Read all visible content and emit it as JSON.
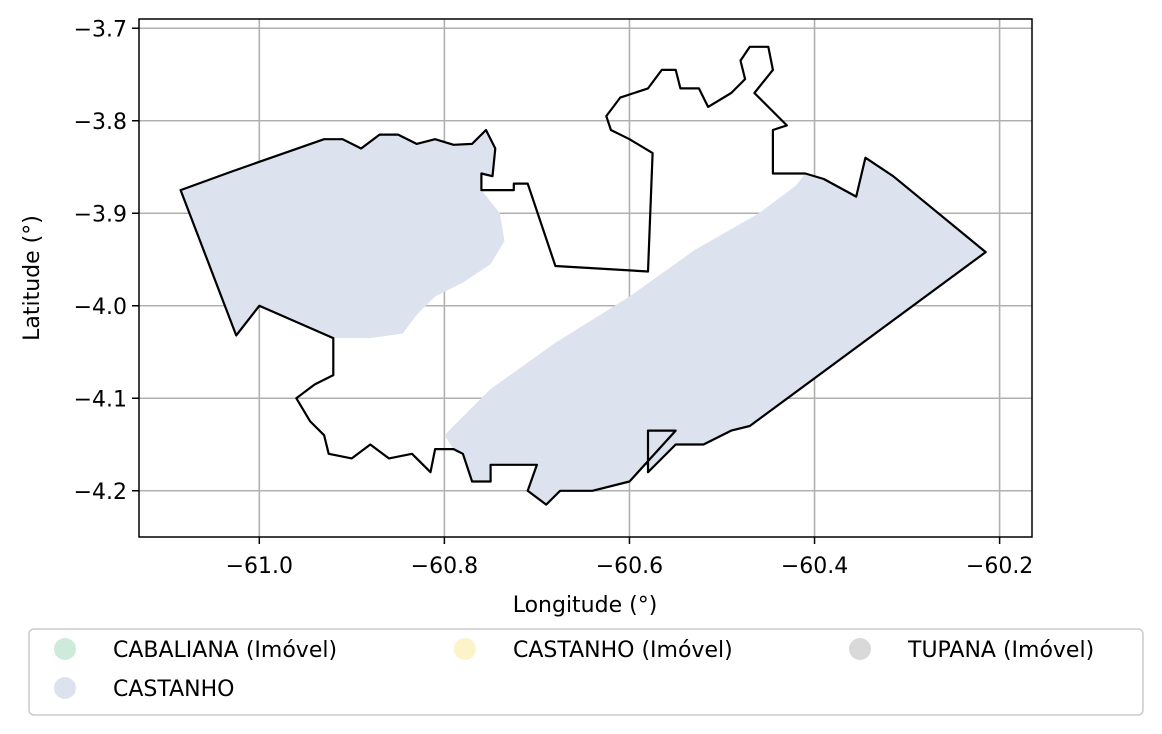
{
  "chart_data": {
    "type": "map",
    "xlabel": "Longitude (°)",
    "ylabel": "Latitude (°)",
    "xlim": [
      -61.13,
      -60.165
    ],
    "ylim": [
      -4.25,
      -3.69
    ],
    "grid": true,
    "xticks": [
      {
        "value": -61.0,
        "label": "−61.0"
      },
      {
        "value": -60.8,
        "label": "−60.8"
      },
      {
        "value": -60.6,
        "label": "−60.6"
      },
      {
        "value": -60.4,
        "label": "−60.4"
      },
      {
        "value": -60.2,
        "label": "−60.2"
      }
    ],
    "yticks": [
      {
        "value": -3.7,
        "label": "−3.7"
      },
      {
        "value": -3.8,
        "label": "−3.8"
      },
      {
        "value": -3.9,
        "label": "−3.9"
      },
      {
        "value": -4.0,
        "label": "−4.0"
      },
      {
        "value": -4.1,
        "label": "−4.1"
      },
      {
        "value": -4.2,
        "label": "−4.2"
      }
    ],
    "legend": {
      "placement": "bottom",
      "entries": [
        {
          "label": "CABALIANA (Imóvel)",
          "color": "#cdeadb"
        },
        {
          "label": "CASTANHO (Imóvel)",
          "color": "#fdf3c8"
        },
        {
          "label": "TUPANA (Imóvel)",
          "color": "#d9d9d9"
        },
        {
          "label": "CASTANHO",
          "color": "#dde2ef"
        }
      ]
    },
    "fill_color": "#dde2ef",
    "outline_color": "#000000",
    "outline": [
      [
        -61.085,
        -3.875
      ],
      [
        -61.03,
        -3.855
      ],
      [
        -60.93,
        -3.82
      ],
      [
        -60.91,
        -3.82
      ],
      [
        -60.89,
        -3.83
      ],
      [
        -60.87,
        -3.815
      ],
      [
        -60.85,
        -3.815
      ],
      [
        -60.83,
        -3.825
      ],
      [
        -60.81,
        -3.82
      ],
      [
        -60.79,
        -3.826
      ],
      [
        -60.77,
        -3.825
      ],
      [
        -60.755,
        -3.81
      ],
      [
        -60.745,
        -3.83
      ],
      [
        -60.748,
        -3.86
      ],
      [
        -60.76,
        -3.857
      ],
      [
        -60.76,
        -3.875
      ],
      [
        -60.725,
        -3.875
      ],
      [
        -60.725,
        -3.868
      ],
      [
        -60.71,
        -3.868
      ],
      [
        -60.68,
        -3.957
      ],
      [
        -60.58,
        -3.963
      ],
      [
        -60.575,
        -3.835
      ],
      [
        -60.6,
        -3.82
      ],
      [
        -60.62,
        -3.81
      ],
      [
        -60.625,
        -3.795
      ],
      [
        -60.61,
        -3.775
      ],
      [
        -60.58,
        -3.765
      ],
      [
        -60.565,
        -3.745
      ],
      [
        -60.55,
        -3.745
      ],
      [
        -60.545,
        -3.765
      ],
      [
        -60.525,
        -3.765
      ],
      [
        -60.515,
        -3.785
      ],
      [
        -60.49,
        -3.77
      ],
      [
        -60.475,
        -3.755
      ],
      [
        -60.48,
        -3.735
      ],
      [
        -60.47,
        -3.72
      ],
      [
        -60.45,
        -3.72
      ],
      [
        -60.445,
        -3.745
      ],
      [
        -60.465,
        -3.77
      ],
      [
        -60.45,
        -3.785
      ],
      [
        -60.43,
        -3.805
      ],
      [
        -60.445,
        -3.81
      ],
      [
        -60.445,
        -3.857
      ],
      [
        -60.41,
        -3.857
      ],
      [
        -60.39,
        -3.863
      ],
      [
        -60.355,
        -3.882
      ],
      [
        -60.345,
        -3.84
      ],
      [
        -60.315,
        -3.86
      ],
      [
        -60.215,
        -3.942
      ],
      [
        -60.47,
        -4.13
      ],
      [
        -60.49,
        -4.135
      ],
      [
        -60.52,
        -4.15
      ],
      [
        -60.55,
        -4.15
      ],
      [
        -60.57,
        -4.17
      ],
      [
        -60.58,
        -4.18
      ],
      [
        -60.58,
        -4.135
      ],
      [
        -60.55,
        -4.135
      ],
      [
        -60.6,
        -4.19
      ],
      [
        -60.64,
        -4.2
      ],
      [
        -60.675,
        -4.2
      ],
      [
        -60.69,
        -4.215
      ],
      [
        -60.71,
        -4.2
      ],
      [
        -60.7,
        -4.172
      ],
      [
        -60.75,
        -4.172
      ],
      [
        -60.75,
        -4.19
      ],
      [
        -60.77,
        -4.19
      ],
      [
        -60.78,
        -4.16
      ],
      [
        -60.79,
        -4.155
      ],
      [
        -60.81,
        -4.155
      ],
      [
        -60.815,
        -4.18
      ],
      [
        -60.835,
        -4.16
      ],
      [
        -60.86,
        -4.165
      ],
      [
        -60.88,
        -4.15
      ],
      [
        -60.9,
        -4.165
      ],
      [
        -60.925,
        -4.16
      ],
      [
        -60.93,
        -4.14
      ],
      [
        -60.945,
        -4.125
      ],
      [
        -60.96,
        -4.1
      ],
      [
        -60.94,
        -4.085
      ],
      [
        -60.92,
        -4.075
      ],
      [
        -60.92,
        -4.035
      ],
      [
        -61.0,
        -4.0
      ],
      [
        -61.025,
        -4.032
      ]
    ],
    "fill_patches": [
      [
        [
          -61.085,
          -3.875
        ],
        [
          -61.03,
          -3.855
        ],
        [
          -60.93,
          -3.82
        ],
        [
          -60.91,
          -3.82
        ],
        [
          -60.89,
          -3.83
        ],
        [
          -60.87,
          -3.815
        ],
        [
          -60.85,
          -3.815
        ],
        [
          -60.83,
          -3.825
        ],
        [
          -60.81,
          -3.82
        ],
        [
          -60.79,
          -3.826
        ],
        [
          -60.77,
          -3.825
        ],
        [
          -60.755,
          -3.81
        ],
        [
          -60.745,
          -3.83
        ],
        [
          -60.748,
          -3.86
        ],
        [
          -60.76,
          -3.857
        ],
        [
          -60.76,
          -3.875
        ],
        [
          -60.74,
          -3.9
        ],
        [
          -60.735,
          -3.93
        ],
        [
          -60.75,
          -3.955
        ],
        [
          -60.78,
          -3.975
        ],
        [
          -60.81,
          -3.99
        ],
        [
          -60.83,
          -4.01
        ],
        [
          -60.845,
          -4.03
        ],
        [
          -60.88,
          -4.035
        ],
        [
          -60.92,
          -4.035
        ],
        [
          -61.0,
          -4.0
        ],
        [
          -61.025,
          -4.032
        ]
      ],
      [
        [
          -60.215,
          -3.942
        ],
        [
          -60.315,
          -3.86
        ],
        [
          -60.345,
          -3.84
        ],
        [
          -60.355,
          -3.882
        ],
        [
          -60.39,
          -3.863
        ],
        [
          -60.41,
          -3.857
        ],
        [
          -60.42,
          -3.87
        ],
        [
          -60.46,
          -3.9
        ],
        [
          -60.53,
          -3.94
        ],
        [
          -60.6,
          -3.99
        ],
        [
          -60.68,
          -4.04
        ],
        [
          -60.75,
          -4.09
        ],
        [
          -60.8,
          -4.14
        ],
        [
          -60.79,
          -4.155
        ],
        [
          -60.78,
          -4.16
        ],
        [
          -60.77,
          -4.19
        ],
        [
          -60.75,
          -4.19
        ],
        [
          -60.75,
          -4.172
        ],
        [
          -60.7,
          -4.172
        ],
        [
          -60.71,
          -4.2
        ],
        [
          -60.69,
          -4.215
        ],
        [
          -60.675,
          -4.2
        ],
        [
          -60.64,
          -4.2
        ],
        [
          -60.6,
          -4.19
        ],
        [
          -60.55,
          -4.135
        ],
        [
          -60.58,
          -4.135
        ],
        [
          -60.58,
          -4.18
        ],
        [
          -60.57,
          -4.17
        ],
        [
          -60.55,
          -4.15
        ],
        [
          -60.52,
          -4.15
        ],
        [
          -60.49,
          -4.135
        ],
        [
          -60.47,
          -4.13
        ]
      ]
    ]
  }
}
